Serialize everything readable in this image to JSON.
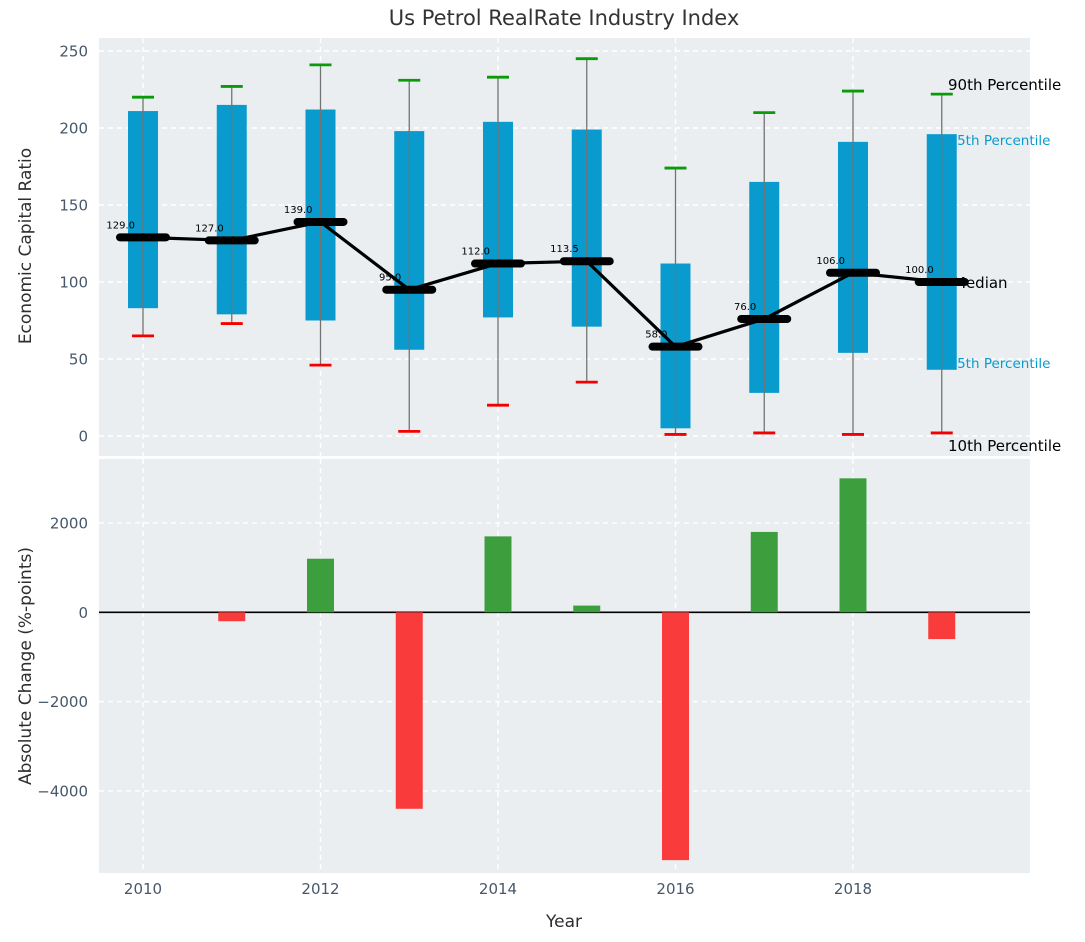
{
  "colors": {
    "plot_bg": "#eaeef1",
    "grid": "#ffffff",
    "tick_label": "#46586a",
    "title_text": "#333333",
    "axis_label_text": "#2e2e2e",
    "bar_blue": "#099bcd",
    "cap_green": "#0a9a0a",
    "cap_red": "#f40000",
    "whisker_gray": "#737373",
    "median_black": "#000000",
    "positive_green": "#3d9e3d",
    "negative_red": "#f93b3b",
    "zero_line": "#000000"
  },
  "chart_data": [
    {
      "type": "boxbar+line",
      "title": "Us Petrol RealRate Industry Index",
      "ylabel": "Economic Capital Ratio",
      "x": [
        2010,
        2011,
        2012,
        2013,
        2014,
        2015,
        2016,
        2017,
        2018,
        2019
      ],
      "xticks": [
        2010,
        2012,
        2014,
        2016,
        2018
      ],
      "xtick_labels": [
        "2010",
        "2012",
        "2014",
        "2016",
        "2018"
      ],
      "yticks": [
        0,
        50,
        100,
        150,
        200,
        250
      ],
      "ytick_labels": [
        "0",
        "50",
        "100",
        "150",
        "200",
        "250"
      ],
      "ylim": [
        -12,
        258
      ],
      "grid": true,
      "series": [
        {
          "name": "90th Percentile",
          "values": [
            220,
            227,
            241,
            231,
            233,
            245,
            174,
            210,
            224,
            222
          ]
        },
        {
          "name": "75th Percentile",
          "values": [
            211,
            215,
            212,
            198,
            204,
            199,
            112,
            165,
            191,
            196
          ]
        },
        {
          "name": "Median",
          "values": [
            129,
            127,
            139,
            95,
            112,
            113.5,
            58,
            76,
            106,
            100
          ]
        },
        {
          "name": "25th Percentile",
          "values": [
            83,
            79,
            75,
            56,
            77,
            71,
            5,
            28,
            54,
            43
          ]
        },
        {
          "name": "10th Percentile",
          "values": [
            65,
            73,
            46,
            3,
            20,
            35,
            1,
            2,
            1,
            2
          ]
        }
      ],
      "median_point_labels": [
        "129.0",
        "127.0",
        "139.0",
        "95.0",
        "112.0",
        "113.5",
        "58.0",
        "76.0",
        "106.0",
        "100.0"
      ],
      "right_axis_labels": [
        {
          "text": "90th Percentile",
          "color": "black"
        },
        {
          "text": "75th Percentile",
          "color": "blue"
        },
        {
          "text": "Median",
          "color": "black"
        },
        {
          "text": "25th Percentile",
          "color": "blue"
        },
        {
          "text": "10th Percentile",
          "color": "black"
        }
      ]
    },
    {
      "type": "bar",
      "ylabel": "Absolute Change (%-points)",
      "xlabel": "Year",
      "x": [
        2010,
        2011,
        2012,
        2013,
        2014,
        2015,
        2016,
        2017,
        2018,
        2019
      ],
      "values": [
        0,
        -200,
        1200,
        -4400,
        1700,
        150,
        -5550,
        1800,
        3000,
        -600
      ],
      "xticks": [
        2010,
        2012,
        2014,
        2016,
        2018
      ],
      "xtick_labels": [
        "2010",
        "2012",
        "2014",
        "2016",
        "2018"
      ],
      "yticks": [
        2000,
        0,
        -2000,
        -4000
      ],
      "ytick_labels": [
        "2000",
        "0",
        "−2000",
        "−4000"
      ],
      "ylim": [
        -5840,
        3430
      ],
      "grid": true
    }
  ]
}
